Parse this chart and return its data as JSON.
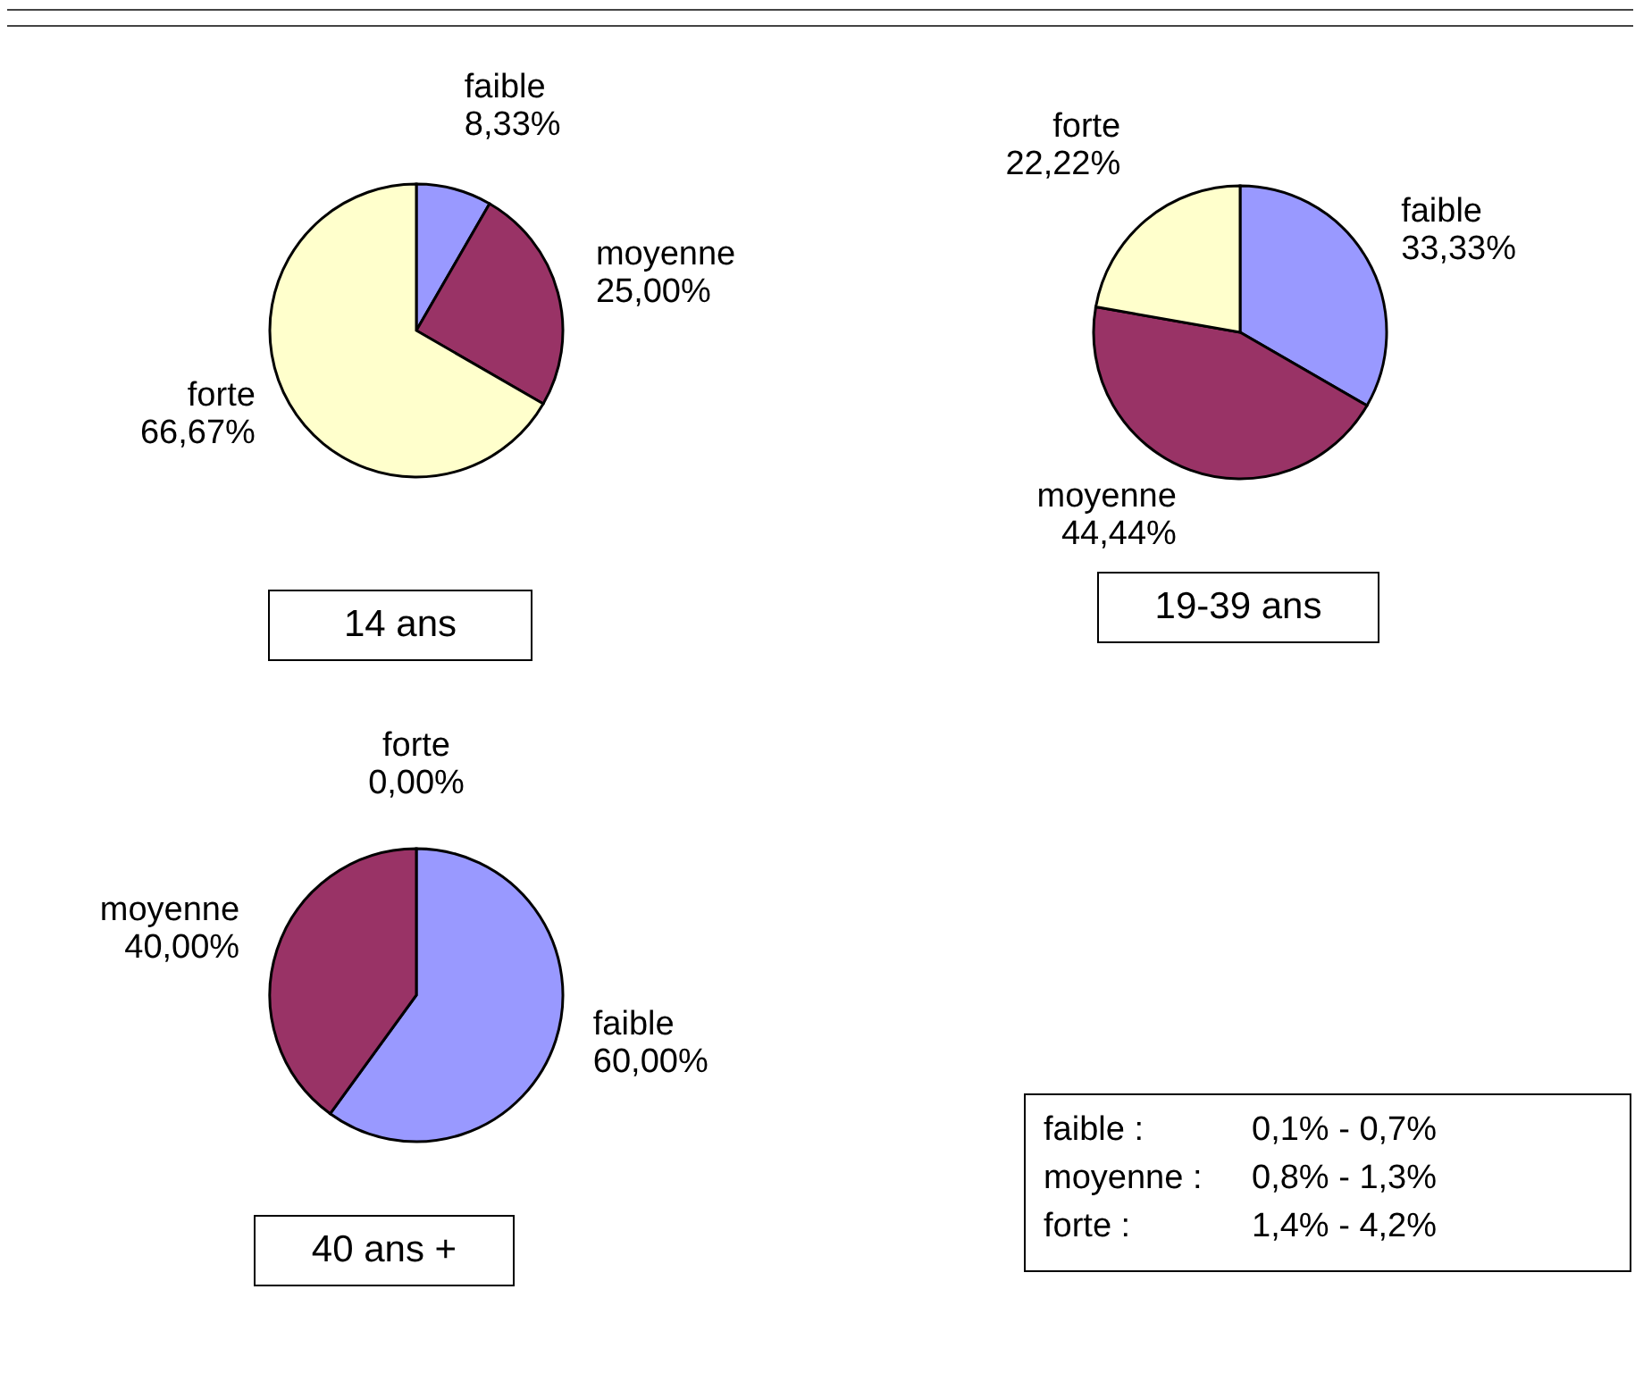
{
  "chart_data": [
    {
      "type": "pie",
      "title": "14 ans",
      "categories": [
        "faible",
        "moyenne",
        "forte"
      ],
      "values": [
        8.33,
        25.0,
        66.67
      ],
      "colors": [
        "#9999ff",
        "#993366",
        "#ffffcc"
      ],
      "value_labels": [
        "8,33%",
        "25,00%",
        "66,67%"
      ],
      "legend": false
    },
    {
      "type": "pie",
      "title": "19-39 ans",
      "categories": [
        "faible",
        "moyenne",
        "forte"
      ],
      "values": [
        33.33,
        44.44,
        22.22
      ],
      "colors": [
        "#9999ff",
        "#993366",
        "#ffffcc"
      ],
      "value_labels": [
        "33,33%",
        "44,44%",
        "22,22%"
      ],
      "legend": false
    },
    {
      "type": "pie",
      "title": "40 ans +",
      "categories": [
        "faible",
        "moyenne",
        "forte"
      ],
      "values": [
        60.0,
        40.0,
        0.0
      ],
      "colors": [
        "#9999ff",
        "#993366",
        "#ffffcc"
      ],
      "value_labels": [
        "60,00%",
        "40,00%",
        "0,00%"
      ],
      "legend": false
    },
    {
      "type": "other",
      "annotations": [
        "faible :",
        "0,1% - 0,7%",
        "moyenne :",
        "0,8% - 1,3%",
        "forte :",
        "1,4% - 4,2%"
      ]
    }
  ]
}
